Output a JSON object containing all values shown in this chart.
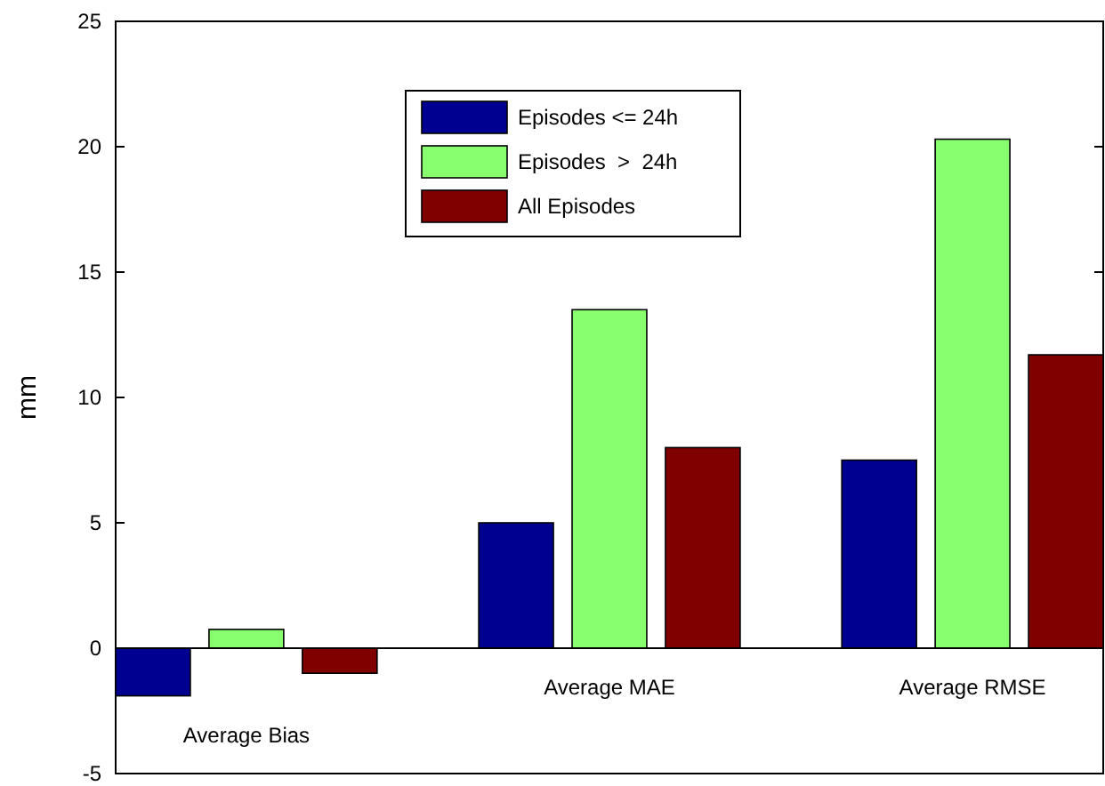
{
  "chart_data": {
    "type": "bar",
    "ylabel": "mm",
    "categories": [
      "Average Bias",
      "Average MAE",
      "Average RMSE"
    ],
    "series": [
      {
        "name": "Episodes <= 24h",
        "color": "#000090",
        "values": [
          -1.9,
          5.0,
          7.5
        ]
      },
      {
        "name": "Episodes  >  24h",
        "color": "#88ff6e",
        "values": [
          0.75,
          13.5,
          20.3
        ]
      },
      {
        "name": "All Episodes",
        "color": "#800000",
        "values": [
          -1.0,
          8.0,
          11.7
        ]
      }
    ],
    "ylim": [
      -5,
      25
    ],
    "yticks": [
      -5,
      0,
      5,
      10,
      15,
      20,
      25
    ],
    "grid": false,
    "legend": "top"
  }
}
